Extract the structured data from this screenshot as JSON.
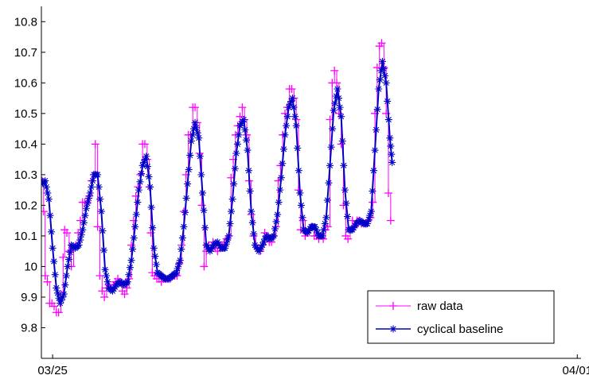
{
  "chart_data": {
    "type": "line",
    "title": "",
    "xlabel": "",
    "ylabel": "",
    "x_tick_labels": [
      {
        "x": 1.0,
        "label": "03/25"
      },
      {
        "x": 8.0,
        "label": "04/01"
      }
    ],
    "xlim": [
      0.85,
      8.05
    ],
    "ylim": [
      9.7,
      10.85
    ],
    "y_ticks": [
      9.8,
      9.9,
      10.0,
      10.1,
      10.2,
      10.3,
      10.4,
      10.5,
      10.6,
      10.7,
      10.8
    ],
    "y_tick_labels": [
      "9.8",
      "9.9",
      "10",
      "10.1",
      "10.2",
      "10.3",
      "10.4",
      "10.5",
      "10.6",
      "10.7",
      "10.8"
    ],
    "grid": false,
    "legend_position": "bottom-right",
    "series": [
      {
        "name": "raw data",
        "color": "#ff00ff",
        "marker": "plus",
        "points": [
          [
            0.86,
            10.28
          ],
          [
            0.88,
            10.18
          ],
          [
            0.9,
            9.97
          ],
          [
            0.93,
            9.95
          ],
          [
            0.96,
            9.88
          ],
          [
            0.99,
            9.88
          ],
          [
            1.02,
            9.87
          ],
          [
            1.05,
            9.85
          ],
          [
            1.08,
            9.85
          ],
          [
            1.11,
            9.91
          ],
          [
            1.14,
            10.03
          ],
          [
            1.16,
            10.12
          ],
          [
            1.19,
            10.11
          ],
          [
            1.22,
            10.05
          ],
          [
            1.25,
            10.0
          ],
          [
            1.28,
            10.06
          ],
          [
            1.31,
            10.07
          ],
          [
            1.34,
            10.11
          ],
          [
            1.37,
            10.15
          ],
          [
            1.4,
            10.21
          ],
          [
            1.43,
            10.21
          ],
          [
            1.46,
            10.21
          ],
          [
            1.49,
            10.23
          ],
          [
            1.52,
            10.28
          ],
          [
            1.55,
            10.3
          ],
          [
            1.57,
            10.4
          ],
          [
            1.6,
            10.13
          ],
          [
            1.63,
            9.97
          ],
          [
            1.66,
            9.92
          ],
          [
            1.69,
            9.9
          ],
          [
            1.72,
            9.93
          ],
          [
            1.75,
            9.94
          ],
          [
            1.78,
            9.93
          ],
          [
            1.81,
            9.94
          ],
          [
            1.84,
            9.95
          ],
          [
            1.87,
            9.96
          ],
          [
            1.9,
            9.95
          ],
          [
            1.93,
            9.92
          ],
          [
            1.96,
            9.91
          ],
          [
            1.99,
            9.93
          ],
          [
            2.02,
            9.96
          ],
          [
            2.05,
            10.07
          ],
          [
            2.08,
            10.15
          ],
          [
            2.11,
            10.23
          ],
          [
            2.14,
            10.26
          ],
          [
            2.17,
            10.3
          ],
          [
            2.2,
            10.4
          ],
          [
            2.23,
            10.4
          ],
          [
            2.26,
            10.35
          ],
          [
            2.29,
            10.26
          ],
          [
            2.31,
            10.11
          ],
          [
            2.33,
            9.98
          ],
          [
            2.36,
            9.97
          ],
          [
            2.39,
            9.96
          ],
          [
            2.42,
            9.96
          ],
          [
            2.45,
            9.95
          ],
          [
            2.48,
            9.96
          ],
          [
            2.51,
            9.96
          ],
          [
            2.54,
            9.96
          ],
          [
            2.57,
            9.96
          ],
          [
            2.6,
            9.97
          ],
          [
            2.63,
            9.97
          ],
          [
            2.66,
            9.97
          ],
          [
            2.69,
            10.01
          ],
          [
            2.72,
            10.07
          ],
          [
            2.75,
            10.18
          ],
          [
            2.78,
            10.3
          ],
          [
            2.81,
            10.43
          ],
          [
            2.84,
            10.43
          ],
          [
            2.87,
            10.52
          ],
          [
            2.9,
            10.52
          ],
          [
            2.93,
            10.47
          ],
          [
            2.96,
            10.37
          ],
          [
            2.99,
            10.2
          ],
          [
            3.02,
            10.0
          ],
          [
            3.05,
            10.05
          ],
          [
            3.08,
            10.07
          ],
          [
            3.11,
            10.06
          ],
          [
            3.14,
            10.08
          ],
          [
            3.17,
            10.06
          ],
          [
            3.2,
            10.05
          ],
          [
            3.23,
            10.06
          ],
          [
            3.26,
            10.07
          ],
          [
            3.29,
            10.08
          ],
          [
            3.32,
            10.09
          ],
          [
            3.35,
            10.1
          ],
          [
            3.38,
            10.29
          ],
          [
            3.41,
            10.35
          ],
          [
            3.44,
            10.43
          ],
          [
            3.47,
            10.46
          ],
          [
            3.5,
            10.49
          ],
          [
            3.53,
            10.52
          ],
          [
            3.56,
            10.48
          ],
          [
            3.59,
            10.43
          ],
          [
            3.62,
            10.28
          ],
          [
            3.65,
            10.17
          ],
          [
            3.68,
            10.1
          ],
          [
            3.71,
            10.07
          ],
          [
            3.74,
            10.06
          ],
          [
            3.77,
            10.05
          ],
          [
            3.8,
            10.07
          ],
          [
            3.83,
            10.11
          ],
          [
            3.86,
            10.1
          ],
          [
            3.89,
            10.08
          ],
          [
            3.92,
            10.08
          ],
          [
            3.95,
            10.1
          ],
          [
            3.98,
            10.13
          ],
          [
            4.01,
            10.28
          ],
          [
            4.04,
            10.33
          ],
          [
            4.07,
            10.43
          ],
          [
            4.1,
            10.5
          ],
          [
            4.13,
            10.52
          ],
          [
            4.16,
            10.58
          ],
          [
            4.19,
            10.58
          ],
          [
            4.22,
            10.55
          ],
          [
            4.25,
            10.48
          ],
          [
            4.28,
            10.25
          ],
          [
            4.31,
            10.12
          ],
          [
            4.34,
            10.15
          ],
          [
            4.37,
            10.1
          ],
          [
            4.4,
            10.11
          ],
          [
            4.43,
            10.12
          ],
          [
            4.46,
            10.13
          ],
          [
            4.49,
            10.1
          ],
          [
            4.52,
            10.1
          ],
          [
            4.55,
            10.09
          ],
          [
            4.58,
            10.1
          ],
          [
            4.61,
            10.09
          ],
          [
            4.64,
            10.12
          ],
          [
            4.67,
            10.13
          ],
          [
            4.7,
            10.48
          ],
          [
            4.73,
            10.6
          ],
          [
            4.76,
            10.64
          ],
          [
            4.79,
            10.6
          ],
          [
            4.82,
            10.5
          ],
          [
            4.85,
            10.4
          ],
          [
            4.88,
            10.2
          ],
          [
            4.91,
            10.1
          ],
          [
            4.94,
            10.09
          ],
          [
            4.97,
            10.12
          ],
          [
            5.0,
            10.15
          ],
          [
            5.03,
            10.13
          ],
          [
            5.06,
            10.15
          ],
          [
            5.09,
            10.15
          ],
          [
            5.12,
            10.14
          ],
          [
            5.15,
            10.14
          ],
          [
            5.18,
            10.14
          ],
          [
            5.21,
            10.15
          ],
          [
            5.24,
            10.16
          ],
          [
            5.27,
            10.21
          ],
          [
            5.3,
            10.5
          ],
          [
            5.33,
            10.65
          ],
          [
            5.36,
            10.72
          ],
          [
            5.39,
            10.73
          ],
          [
            5.42,
            10.65
          ],
          [
            5.45,
            10.5
          ],
          [
            5.48,
            10.24
          ],
          [
            5.51,
            10.15
          ]
        ]
      },
      {
        "name": "cyclical baseline",
        "color": "#0000c8",
        "marker": "asterisk",
        "points": [
          [
            0.85,
            10.27
          ],
          [
            0.9,
            10.28
          ],
          [
            0.95,
            10.22
          ],
          [
            1.0,
            10.06
          ],
          [
            1.05,
            9.93
          ],
          [
            1.1,
            9.88
          ],
          [
            1.15,
            9.91
          ],
          [
            1.2,
            10.0
          ],
          [
            1.25,
            10.07
          ],
          [
            1.3,
            10.06
          ],
          [
            1.35,
            10.07
          ],
          [
            1.4,
            10.12
          ],
          [
            1.45,
            10.19
          ],
          [
            1.5,
            10.24
          ],
          [
            1.55,
            10.3
          ],
          [
            1.6,
            10.3
          ],
          [
            1.65,
            10.18
          ],
          [
            1.7,
            9.99
          ],
          [
            1.75,
            9.93
          ],
          [
            1.8,
            9.92
          ],
          [
            1.85,
            9.94
          ],
          [
            1.9,
            9.95
          ],
          [
            1.95,
            9.94
          ],
          [
            2.0,
            9.95
          ],
          [
            2.05,
            10.02
          ],
          [
            2.1,
            10.13
          ],
          [
            2.15,
            10.25
          ],
          [
            2.2,
            10.33
          ],
          [
            2.25,
            10.36
          ],
          [
            2.3,
            10.26
          ],
          [
            2.35,
            10.06
          ],
          [
            2.4,
            9.98
          ],
          [
            2.45,
            9.97
          ],
          [
            2.5,
            9.96
          ],
          [
            2.55,
            9.96
          ],
          [
            2.6,
            9.97
          ],
          [
            2.65,
            9.98
          ],
          [
            2.7,
            10.02
          ],
          [
            2.75,
            10.13
          ],
          [
            2.8,
            10.27
          ],
          [
            2.85,
            10.41
          ],
          [
            2.9,
            10.47
          ],
          [
            2.95,
            10.42
          ],
          [
            3.0,
            10.24
          ],
          [
            3.05,
            10.07
          ],
          [
            3.1,
            10.05
          ],
          [
            3.15,
            10.07
          ],
          [
            3.2,
            10.08
          ],
          [
            3.25,
            10.06
          ],
          [
            3.3,
            10.06
          ],
          [
            3.35,
            10.1
          ],
          [
            3.4,
            10.22
          ],
          [
            3.45,
            10.37
          ],
          [
            3.5,
            10.46
          ],
          [
            3.55,
            10.48
          ],
          [
            3.6,
            10.38
          ],
          [
            3.65,
            10.18
          ],
          [
            3.7,
            10.07
          ],
          [
            3.75,
            10.05
          ],
          [
            3.8,
            10.07
          ],
          [
            3.85,
            10.1
          ],
          [
            3.9,
            10.09
          ],
          [
            3.95,
            10.1
          ],
          [
            4.0,
            10.17
          ],
          [
            4.05,
            10.29
          ],
          [
            4.1,
            10.43
          ],
          [
            4.15,
            10.52
          ],
          [
            4.2,
            10.55
          ],
          [
            4.25,
            10.46
          ],
          [
            4.3,
            10.24
          ],
          [
            4.35,
            10.12
          ],
          [
            4.4,
            10.11
          ],
          [
            4.45,
            10.13
          ],
          [
            4.5,
            10.13
          ],
          [
            4.55,
            10.1
          ],
          [
            4.6,
            10.1
          ],
          [
            4.65,
            10.16
          ],
          [
            4.7,
            10.33
          ],
          [
            4.75,
            10.51
          ],
          [
            4.8,
            10.58
          ],
          [
            4.85,
            10.49
          ],
          [
            4.9,
            10.25
          ],
          [
            4.95,
            10.12
          ],
          [
            5.0,
            10.12
          ],
          [
            5.05,
            10.14
          ],
          [
            5.1,
            10.15
          ],
          [
            5.15,
            10.14
          ],
          [
            5.2,
            10.14
          ],
          [
            5.25,
            10.18
          ],
          [
            5.3,
            10.38
          ],
          [
            5.35,
            10.58
          ],
          [
            5.4,
            10.67
          ],
          [
            5.45,
            10.6
          ],
          [
            5.5,
            10.42
          ],
          [
            5.53,
            10.34
          ]
        ]
      }
    ]
  }
}
